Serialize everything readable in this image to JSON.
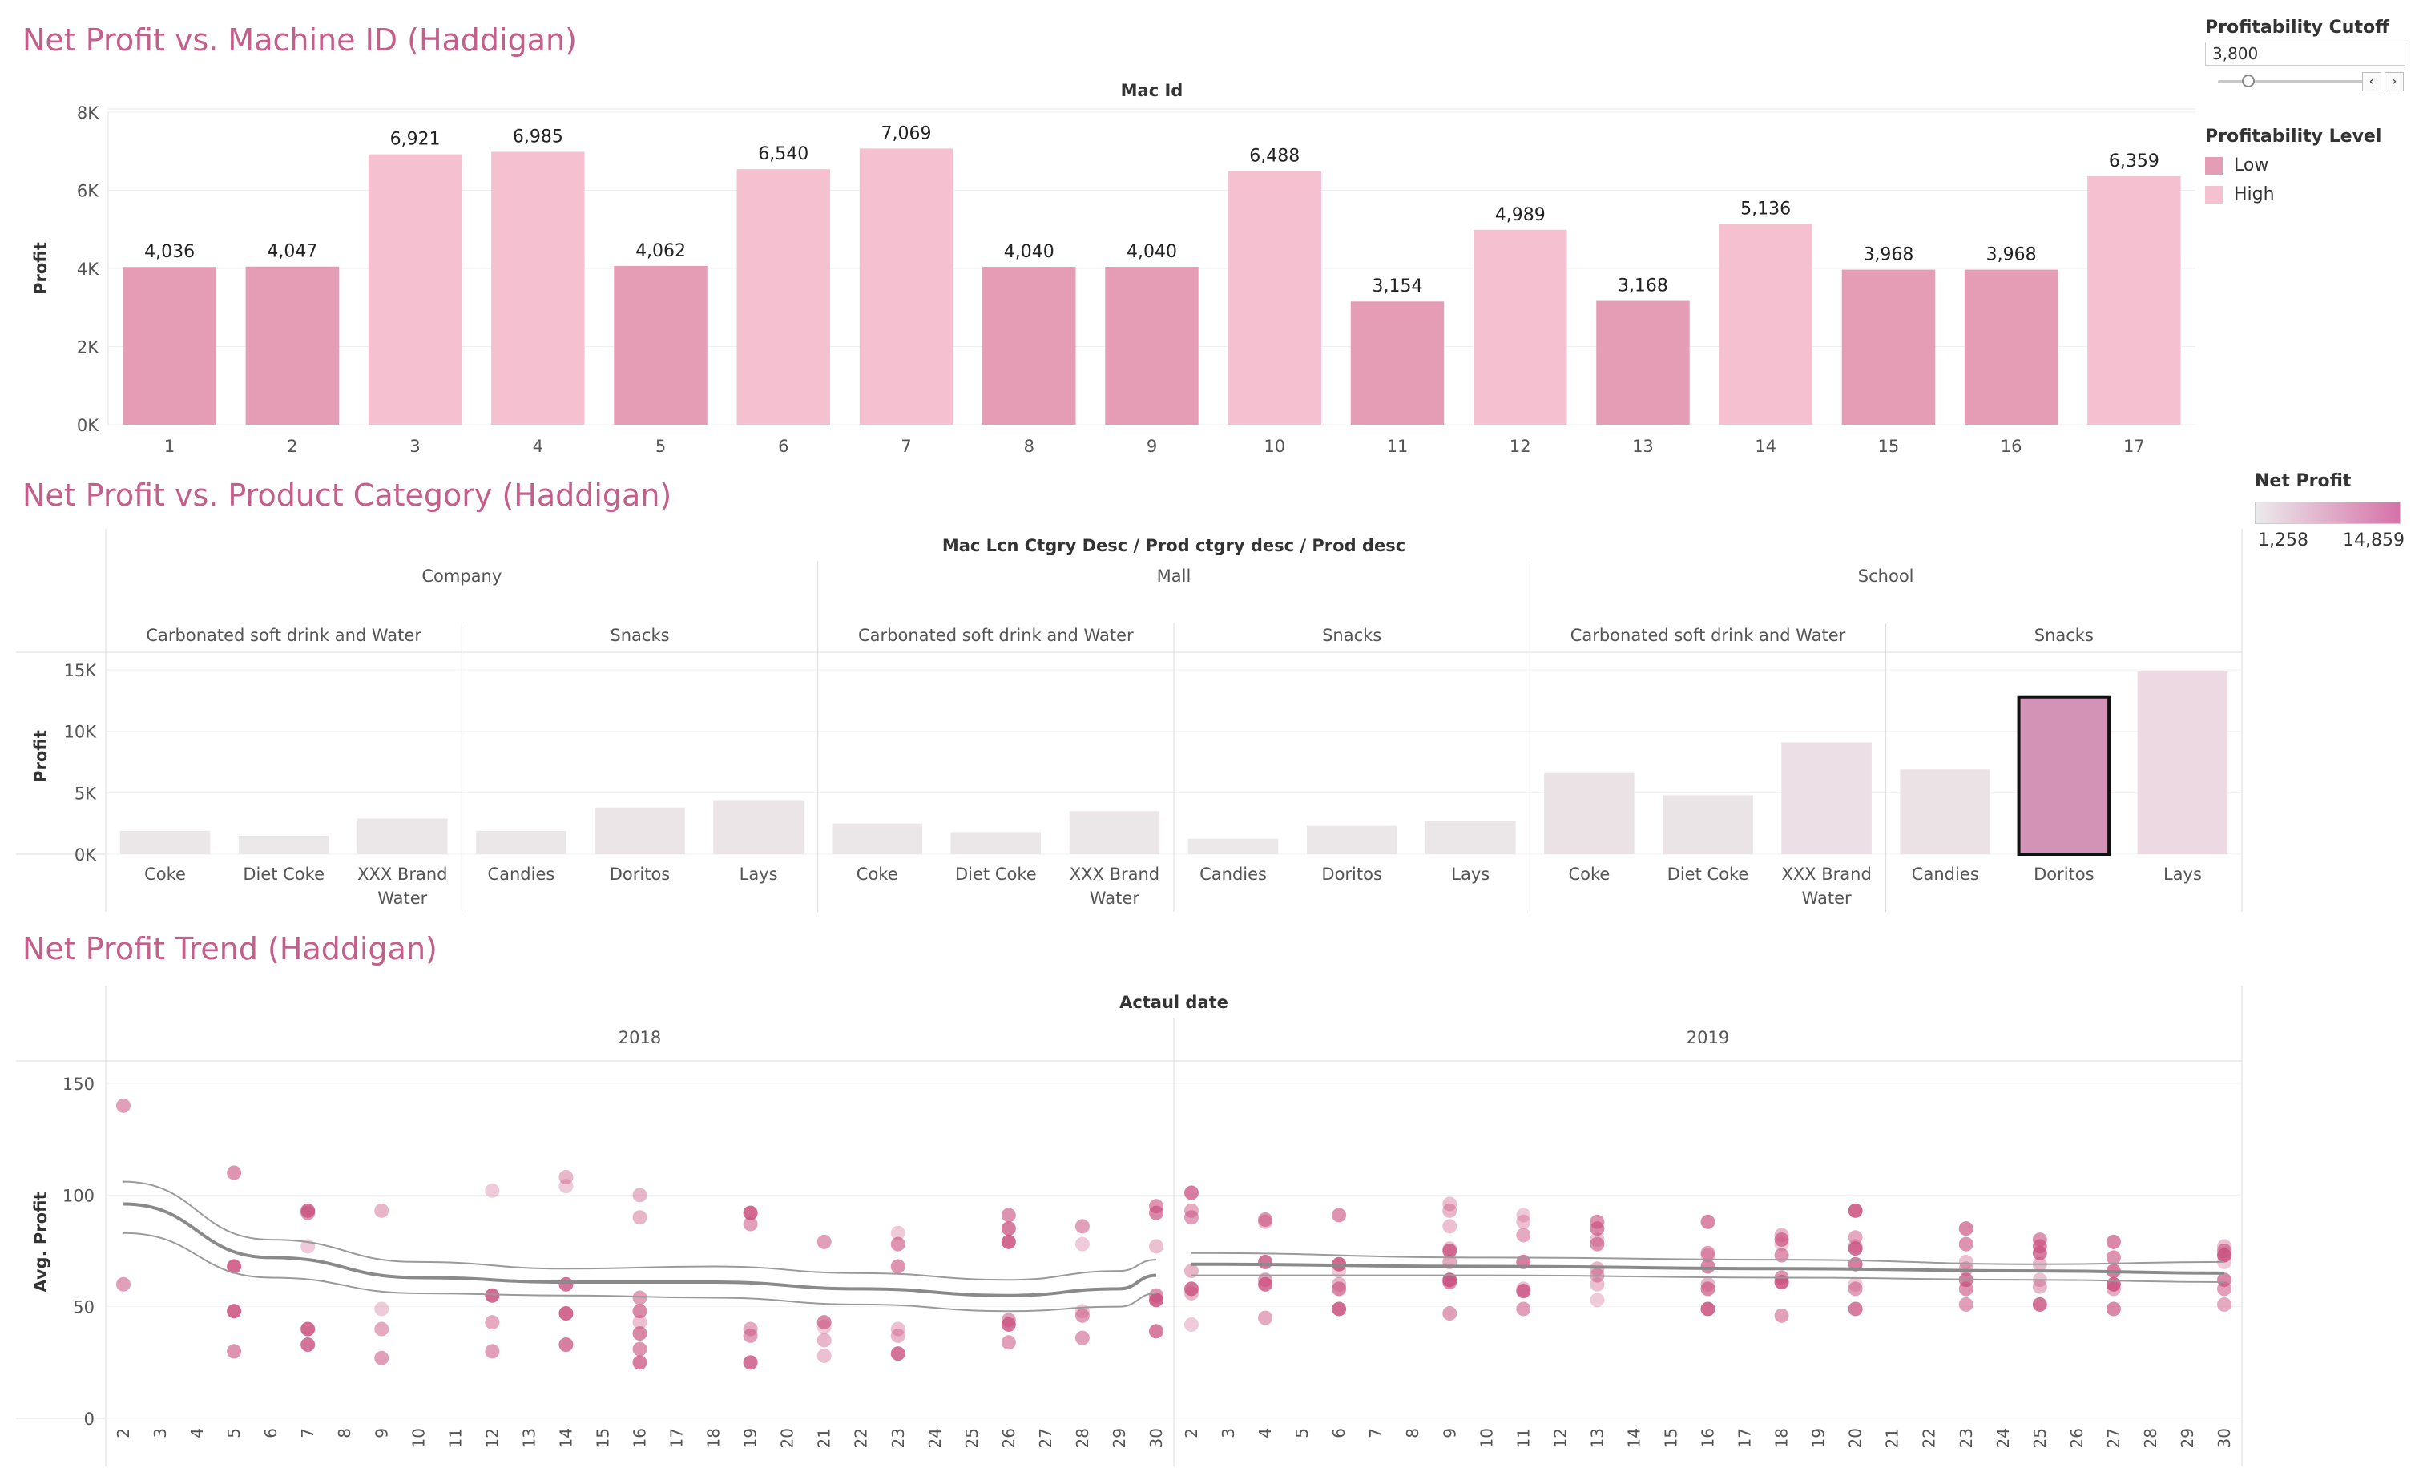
{
  "titles": {
    "machine": "Net Profit vs. Machine ID (Haddigan)",
    "category": "Net Profit vs. Product Category (Haddigan)",
    "trend": "Net Profit Trend (Haddigan)"
  },
  "cutoff": {
    "label": "Profitability Cutoff",
    "value": "3,800",
    "prev_icon": "chevron-left-icon",
    "next_icon": "chevron-right-icon"
  },
  "level_legend": {
    "title": "Profitability Level",
    "items": [
      {
        "label": "Low",
        "color": "#e59cb5"
      },
      {
        "label": "High",
        "color": "#f5c0d0"
      }
    ]
  },
  "net_profit_legend": {
    "title": "Net Profit",
    "min": "1,258",
    "max": "14,859",
    "color_low": "#ebebeb",
    "color_high": "#d672a8"
  },
  "chart_data": [
    {
      "type": "bar",
      "title": "Net Profit vs. Machine ID (Haddigan)",
      "header": "Mac Id",
      "ylabel": "Profit",
      "ylim": [
        0,
        8000
      ],
      "yticks": [
        "0K",
        "2K",
        "4K",
        "6K",
        "8K"
      ],
      "categories": [
        "1",
        "2",
        "3",
        "4",
        "5",
        "6",
        "7",
        "8",
        "9",
        "10",
        "11",
        "12",
        "13",
        "14",
        "15",
        "16",
        "17"
      ],
      "values": [
        4036,
        4047,
        6921,
        6985,
        4062,
        6540,
        7069,
        4040,
        4040,
        6488,
        3154,
        4989,
        3168,
        5136,
        3968,
        3968,
        6359
      ],
      "value_labels": [
        "4,036",
        "4,047",
        "6,921",
        "6,985",
        "4,062",
        "6,540",
        "7,069",
        "4,040",
        "4,040",
        "6,488",
        "3,154",
        "4,989",
        "3,168",
        "5,136",
        "3,968",
        "3,968",
        "6,359"
      ],
      "level": [
        "Low",
        "Low",
        "High",
        "High",
        "Low",
        "High",
        "High",
        "Low",
        "Low",
        "High",
        "Low",
        "High",
        "Low",
        "High",
        "Low",
        "Low",
        "High"
      ],
      "grid": true
    },
    {
      "type": "bar",
      "title": "Net Profit vs. Product Category (Haddigan)",
      "header": "Mac Lcn Ctgry Desc / Prod ctgry desc / Prod desc",
      "ylabel": "Profit",
      "ylim": [
        0,
        15000
      ],
      "yticks": [
        "0K",
        "5K",
        "10K",
        "15K"
      ],
      "groups": [
        {
          "location": "Company",
          "categories": [
            {
              "name": "Carbonated soft drink and Water",
              "products": [
                {
                  "label": "Coke",
                  "value": 1900
                },
                {
                  "label": "Diet Coke",
                  "value": 1500
                },
                {
                  "label": "XXX Brand Water",
                  "value": 2900
                }
              ]
            },
            {
              "name": "Snacks",
              "products": [
                {
                  "label": "Candies",
                  "value": 1900
                },
                {
                  "label": "Doritos",
                  "value": 3800
                },
                {
                  "label": "Lays",
                  "value": 4400
                }
              ]
            }
          ]
        },
        {
          "location": "Mall",
          "categories": [
            {
              "name": "Carbonated soft drink and Water",
              "products": [
                {
                  "label": "Coke",
                  "value": 2500
                },
                {
                  "label": "Diet Coke",
                  "value": 1800
                },
                {
                  "label": "XXX Brand Water",
                  "value": 3500
                }
              ]
            },
            {
              "name": "Snacks",
              "products": [
                {
                  "label": "Candies",
                  "value": 1258
                },
                {
                  "label": "Doritos",
                  "value": 2300
                },
                {
                  "label": "Lays",
                  "value": 2700
                }
              ]
            }
          ]
        },
        {
          "location": "School",
          "categories": [
            {
              "name": "Carbonated soft drink and Water",
              "products": [
                {
                  "label": "Coke",
                  "value": 6600
                },
                {
                  "label": "Diet Coke",
                  "value": 4800
                },
                {
                  "label": "XXX Brand Water",
                  "value": 9100
                }
              ]
            },
            {
              "name": "Snacks",
              "products": [
                {
                  "label": "Candies",
                  "value": 6900
                },
                {
                  "label": "Doritos",
                  "value": 12800,
                  "selected": true
                },
                {
                  "label": "Lays",
                  "value": 14859
                }
              ]
            }
          ]
        }
      ],
      "grid": true
    },
    {
      "type": "scatter",
      "title": "Net Profit Trend (Haddigan)",
      "header": "Actaul date",
      "ylabel": "Avg. Profit",
      "ylim": [
        0,
        150
      ],
      "yticks": [
        "0",
        "50",
        "100",
        "150"
      ],
      "years": [
        {
          "year": "2018",
          "day_ticks": [
            "2",
            "3",
            "4",
            "5",
            "6",
            "7",
            "8",
            "9",
            "10",
            "11",
            "12",
            "13",
            "14",
            "15",
            "16",
            "17",
            "18",
            "19",
            "20",
            "21",
            "22",
            "23",
            "24",
            "25",
            "26",
            "27",
            "28",
            "29",
            "30"
          ],
          "points": [
            [
              2,
              140
            ],
            [
              2,
              60
            ],
            [
              5,
              110
            ],
            [
              5,
              68
            ],
            [
              5,
              48
            ],
            [
              5,
              30
            ],
            [
              7,
              93
            ],
            [
              7,
              92
            ],
            [
              7,
              77
            ],
            [
              7,
              40
            ],
            [
              7,
              33
            ],
            [
              9,
              93
            ],
            [
              9,
              49
            ],
            [
              9,
              40
            ],
            [
              9,
              27
            ],
            [
              12,
              102
            ],
            [
              12,
              55
            ],
            [
              12,
              43
            ],
            [
              12,
              30
            ],
            [
              14,
              108
            ],
            [
              14,
              104
            ],
            [
              14,
              60
            ],
            [
              14,
              47
            ],
            [
              14,
              33
            ],
            [
              16,
              100
            ],
            [
              16,
              90
            ],
            [
              16,
              54
            ],
            [
              16,
              48
            ],
            [
              16,
              43
            ],
            [
              16,
              38
            ],
            [
              16,
              31
            ],
            [
              16,
              25
            ],
            [
              19,
              92
            ],
            [
              19,
              87
            ],
            [
              19,
              40
            ],
            [
              19,
              37
            ],
            [
              19,
              25
            ],
            [
              21,
              79
            ],
            [
              21,
              43
            ],
            [
              21,
              41
            ],
            [
              21,
              35
            ],
            [
              21,
              28
            ],
            [
              23,
              83
            ],
            [
              23,
              78
            ],
            [
              23,
              68
            ],
            [
              23,
              40
            ],
            [
              23,
              37
            ],
            [
              23,
              29
            ],
            [
              26,
              91
            ],
            [
              26,
              85
            ],
            [
              26,
              79
            ],
            [
              26,
              44
            ],
            [
              26,
              42
            ],
            [
              26,
              34
            ],
            [
              28,
              86
            ],
            [
              28,
              78
            ],
            [
              28,
              48
            ],
            [
              28,
              46
            ],
            [
              28,
              36
            ],
            [
              30,
              95
            ],
            [
              30,
              92
            ],
            [
              30,
              77
            ],
            [
              30,
              55
            ],
            [
              30,
              53
            ],
            [
              30,
              39
            ]
          ],
          "trend": [
            [
              2,
              96
            ],
            [
              6,
              72
            ],
            [
              10,
              63
            ],
            [
              14,
              61
            ],
            [
              18,
              61
            ],
            [
              22,
              58
            ],
            [
              26,
              55
            ],
            [
              29,
              58
            ],
            [
              30,
              64
            ]
          ],
          "band_upper": [
            [
              2,
              106
            ],
            [
              6,
              80
            ],
            [
              10,
              70
            ],
            [
              14,
              67
            ],
            [
              18,
              68
            ],
            [
              22,
              65
            ],
            [
              26,
              62
            ],
            [
              29,
              66
            ],
            [
              30,
              71
            ]
          ],
          "band_lower": [
            [
              2,
              83
            ],
            [
              6,
              63
            ],
            [
              10,
              56
            ],
            [
              14,
              55
            ],
            [
              18,
              54
            ],
            [
              22,
              51
            ],
            [
              26,
              48
            ],
            [
              29,
              50
            ],
            [
              30,
              56
            ]
          ]
        },
        {
          "year": "2019",
          "day_ticks": [
            "2",
            "3",
            "4",
            "5",
            "6",
            "7",
            "8",
            "9",
            "10",
            "11",
            "12",
            "13",
            "14",
            "15",
            "16",
            "17",
            "18",
            "19",
            "20",
            "21",
            "22",
            "23",
            "24",
            "25",
            "26",
            "27",
            "28",
            "29",
            "30"
          ],
          "points": [
            [
              2,
              101
            ],
            [
              2,
              93
            ],
            [
              2,
              90
            ],
            [
              2,
              66
            ],
            [
              2,
              58
            ],
            [
              2,
              56
            ],
            [
              2,
              42
            ],
            [
              4,
              89
            ],
            [
              4,
              88
            ],
            [
              4,
              70
            ],
            [
              4,
              62
            ],
            [
              4,
              60
            ],
            [
              4,
              45
            ],
            [
              6,
              91
            ],
            [
              6,
              69
            ],
            [
              6,
              66
            ],
            [
              6,
              60
            ],
            [
              6,
              58
            ],
            [
              6,
              49
            ],
            [
              9,
              96
            ],
            [
              9,
              93
            ],
            [
              9,
              86
            ],
            [
              9,
              76
            ],
            [
              9,
              75
            ],
            [
              9,
              70
            ],
            [
              9,
              62
            ],
            [
              9,
              61
            ],
            [
              9,
              47
            ],
            [
              11,
              91
            ],
            [
              11,
              88
            ],
            [
              11,
              82
            ],
            [
              11,
              70
            ],
            [
              11,
              58
            ],
            [
              11,
              57
            ],
            [
              11,
              49
            ],
            [
              13,
              88
            ],
            [
              13,
              85
            ],
            [
              13,
              80
            ],
            [
              13,
              78
            ],
            [
              13,
              67
            ],
            [
              13,
              64
            ],
            [
              13,
              60
            ],
            [
              13,
              53
            ],
            [
              16,
              88
            ],
            [
              16,
              74
            ],
            [
              16,
              73
            ],
            [
              16,
              68
            ],
            [
              16,
              60
            ],
            [
              16,
              58
            ],
            [
              16,
              49
            ],
            [
              18,
              82
            ],
            [
              18,
              80
            ],
            [
              18,
              78
            ],
            [
              18,
              73
            ],
            [
              18,
              63
            ],
            [
              18,
              61
            ],
            [
              18,
              46
            ],
            [
              20,
              93
            ],
            [
              20,
              81
            ],
            [
              20,
              77
            ],
            [
              20,
              76
            ],
            [
              20,
              69
            ],
            [
              20,
              60
            ],
            [
              20,
              58
            ],
            [
              20,
              49
            ],
            [
              23,
              85
            ],
            [
              23,
              78
            ],
            [
              23,
              70
            ],
            [
              23,
              67
            ],
            [
              23,
              62
            ],
            [
              23,
              58
            ],
            [
              23,
              51
            ],
            [
              25,
              80
            ],
            [
              25,
              77
            ],
            [
              25,
              74
            ],
            [
              25,
              69
            ],
            [
              25,
              62
            ],
            [
              25,
              59
            ],
            [
              25,
              51
            ],
            [
              27,
              79
            ],
            [
              27,
              72
            ],
            [
              27,
              66
            ],
            [
              27,
              60
            ],
            [
              27,
              58
            ],
            [
              27,
              49
            ],
            [
              30,
              77
            ],
            [
              30,
              75
            ],
            [
              30,
              73
            ],
            [
              30,
              70
            ],
            [
              30,
              62
            ],
            [
              30,
              58
            ],
            [
              30,
              51
            ]
          ],
          "trend": [
            [
              2,
              69
            ],
            [
              10,
              68
            ],
            [
              18,
              67
            ],
            [
              25,
              66
            ],
            [
              30,
              65
            ]
          ],
          "band_upper": [
            [
              2,
              74
            ],
            [
              10,
              72
            ],
            [
              18,
              71
            ],
            [
              25,
              69
            ],
            [
              30,
              70
            ]
          ],
          "band_lower": [
            [
              2,
              64
            ],
            [
              10,
              64
            ],
            [
              18,
              63
            ],
            [
              25,
              62
            ],
            [
              30,
              61
            ]
          ]
        }
      ],
      "grid": true
    }
  ]
}
